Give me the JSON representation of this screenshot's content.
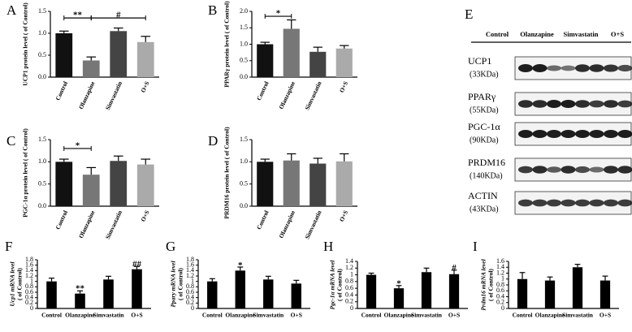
{
  "chart_data": [
    {
      "type": "bar",
      "panel": "A",
      "ylabel": "UCP1 protein level ( of Control)",
      "categories": [
        "Control",
        "Olanzapine",
        "Simvastatin",
        "O+S"
      ],
      "values": [
        1.0,
        0.38,
        1.05,
        0.8
      ],
      "errors": [
        0.05,
        0.08,
        0.07,
        0.13
      ],
      "colors": [
        "#111111",
        "#777777",
        "#444444",
        "#aaaaaa"
      ],
      "ylim": [
        0,
        1.5
      ],
      "yticks": [
        {
          "value": 0,
          "label": "0.0"
        },
        0.5,
        {
          "value": 1,
          "label": "1.0"
        },
        1.5
      ],
      "annotations": [
        "**",
        "#"
      ]
    },
    {
      "type": "bar",
      "panel": "B",
      "ylabel": "PPARγ protein level ( of Control)",
      "categories": [
        "Control",
        "Olanzapine",
        "Simvastatin",
        "O+S"
      ],
      "values": [
        1.0,
        1.47,
        0.77,
        0.87
      ],
      "errors": [
        0.06,
        0.27,
        0.14,
        0.09
      ],
      "colors": [
        "#111111",
        "#777777",
        "#444444",
        "#aaaaaa"
      ],
      "ylim": [
        0,
        2
      ],
      "yticks": [
        {
          "value": 0,
          "label": "0.0"
        },
        0.5,
        {
          "value": 1,
          "label": "1.0"
        },
        1.5,
        {
          "value": 2,
          "label": "2.0"
        }
      ],
      "annotations": [
        "*"
      ]
    },
    {
      "type": "bar",
      "panel": "C",
      "ylabel": "PGC-1α protein level ( of Control)",
      "categories": [
        "Control",
        "Olanzapine",
        "Simvastatin",
        "O+S"
      ],
      "values": [
        1.0,
        0.71,
        1.02,
        0.94
      ],
      "errors": [
        0.06,
        0.16,
        0.11,
        0.12
      ],
      "colors": [
        "#111111",
        "#777777",
        "#444444",
        "#aaaaaa"
      ],
      "ylim": [
        0,
        1.5
      ],
      "yticks": [
        {
          "value": 0,
          "label": "0.0"
        },
        0.5,
        {
          "value": 1,
          "label": "1.0"
        },
        1.5
      ],
      "annotations": [
        "*"
      ]
    },
    {
      "type": "bar",
      "panel": "D",
      "ylabel": "PRDM16 protein level ( of Control)",
      "categories": [
        "Control",
        "Olanzapine",
        "Simvastatin",
        "O+S"
      ],
      "values": [
        1.0,
        1.03,
        0.96,
        1.01
      ],
      "errors": [
        0.06,
        0.15,
        0.12,
        0.17
      ],
      "colors": [
        "#111111",
        "#777777",
        "#444444",
        "#aaaaaa"
      ],
      "ylim": [
        0,
        1.5
      ],
      "yticks": [
        {
          "value": 0,
          "label": "0.0"
        },
        0.5,
        {
          "value": 1,
          "label": "1.0"
        },
        1.5
      ],
      "annotations": []
    },
    {
      "type": "bar",
      "panel": "F",
      "ylabel": [
        "Ucp1 mRNA level",
        "( of Control)"
      ],
      "categories": [
        "Control",
        "Olanzapine",
        "Simvastatin",
        "O+S"
      ],
      "values": [
        1.0,
        0.55,
        1.07,
        1.45
      ],
      "errors": [
        0.12,
        0.1,
        0.12,
        0.1
      ],
      "colors": [
        "#000000",
        "#000000",
        "#000000",
        "#000000"
      ],
      "ylim": [
        0,
        1.8
      ],
      "yticks": [
        0,
        0.2,
        0.4,
        0.6,
        0.8,
        1,
        1.2,
        1.4,
        1.6,
        1.8
      ],
      "annotations": [
        "**",
        "##"
      ]
    },
    {
      "type": "bar",
      "panel": "G",
      "ylabel": [
        "Ppary mRNA level",
        "( of Control)"
      ],
      "categories": [
        "Control",
        "Olanzapine",
        "Simvastatin",
        "O+S"
      ],
      "values": [
        1.0,
        1.4,
        1.07,
        0.92
      ],
      "errors": [
        0.1,
        0.13,
        0.12,
        0.12
      ],
      "colors": [
        "#000000",
        "#000000",
        "#000000",
        "#000000"
      ],
      "ylim": [
        0,
        1.8
      ],
      "yticks": [
        0,
        0.2,
        0.4,
        0.6,
        0.8,
        1,
        1.2,
        1.4,
        1.6,
        1.8
      ],
      "annotations": [
        "*"
      ]
    },
    {
      "type": "bar",
      "panel": "H",
      "ylabel": [
        "Pgc-1α mRNA level",
        "( of Control)"
      ],
      "categories": [
        "Control",
        "Olanzapine",
        "Simvastatin",
        "O+S"
      ],
      "values": [
        1.0,
        0.6,
        1.08,
        1.02
      ],
      "errors": [
        0.05,
        0.08,
        0.12,
        0.12
      ],
      "colors": [
        "#000000",
        "#000000",
        "#000000",
        "#000000"
      ],
      "ylim": [
        0,
        1.4
      ],
      "yticks": [
        0,
        0.2,
        0.4,
        0.6,
        0.8,
        1,
        1.2,
        1.4
      ],
      "annotations": [
        "*",
        "#"
      ]
    },
    {
      "type": "bar",
      "panel": "I",
      "ylabel": [
        "Prdm16 mRNA level",
        "( of Control)"
      ],
      "categories": [
        "Control",
        "Olanzapine",
        "Simvastatin",
        "O+S"
      ],
      "values": [
        1.0,
        0.95,
        1.4,
        0.95
      ],
      "errors": [
        0.22,
        0.12,
        0.1,
        0.15
      ],
      "colors": [
        "#000000",
        "#000000",
        "#000000",
        "#000000"
      ],
      "ylim": [
        0,
        1.6
      ],
      "yticks": [
        0,
        0.2,
        0.4,
        0.6,
        0.8,
        1,
        1.2,
        1.4,
        1.6
      ],
      "annotations": []
    }
  ],
  "panel_e": {
    "letter": "E",
    "groups": [
      "Control",
      "Olanzapine",
      "Simvastatin",
      "O+S"
    ],
    "rows": [
      {
        "name": "UCP1",
        "size": "(33KDa)"
      },
      {
        "name": "PPARγ",
        "size": "(55KDa)"
      },
      {
        "name": "PGC-1α",
        "size": "(90KDa)"
      },
      {
        "name": "PRDM16",
        "size": "(140KDa)"
      },
      {
        "name": "ACTIN",
        "size": "(43KDa)"
      }
    ]
  }
}
